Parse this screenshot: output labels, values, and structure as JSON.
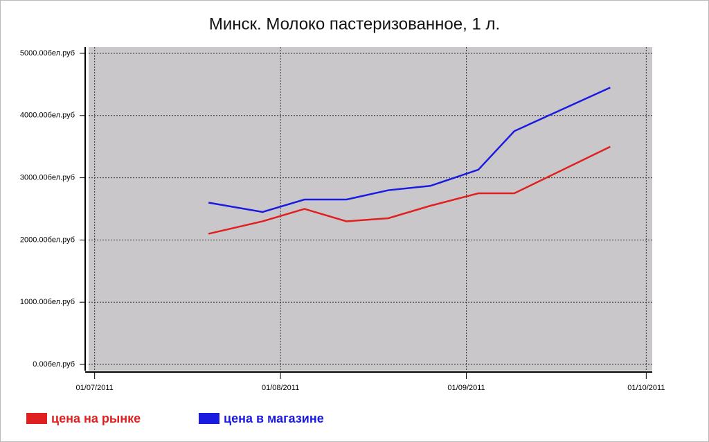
{
  "chart_data": {
    "type": "line",
    "title": "Минск. Молоко пастеризованное, 1 л.",
    "x": [
      "2011-07-20",
      "2011-07-29",
      "2011-08-05",
      "2011-08-12",
      "2011-08-19",
      "2011-08-26",
      "2011-09-03",
      "2011-09-09",
      "2011-09-25"
    ],
    "series": [
      {
        "name": "цена на рынке",
        "color": "#e02020",
        "values": [
          2100,
          2300,
          2500,
          2300,
          2350,
          2550,
          2750,
          2750,
          3500
        ]
      },
      {
        "name": "цена в магазине",
        "color": "#1a1ae0",
        "values": [
          2600,
          2450,
          2650,
          2650,
          2800,
          2870,
          3130,
          3750,
          4450
        ]
      }
    ],
    "xlim": [
      "2011-06-30",
      "2011-10-02"
    ],
    "xticks": [
      {
        "value": "2011-07-01",
        "label": "01/07/2011"
      },
      {
        "value": "2011-08-01",
        "label": "01/08/2011"
      },
      {
        "value": "2011-09-01",
        "label": "01/09/2011"
      },
      {
        "value": "2011-10-01",
        "label": "01/10/2011"
      }
    ],
    "ylim": [
      -100,
      5100
    ],
    "yticks": [
      {
        "value": 0,
        "label": "0.00бел.руб"
      },
      {
        "value": 1000,
        "label": "1000.00бел.руб"
      },
      {
        "value": 2000,
        "label": "2000.00бел.руб"
      },
      {
        "value": 3000,
        "label": "3000.00бел.руб"
      },
      {
        "value": 4000,
        "label": "4000.00бел.руб"
      },
      {
        "value": 5000,
        "label": "5000.00бел.руб"
      }
    ],
    "grid": true,
    "plot_background": "#c9c7c9",
    "legend_position": "bottom"
  }
}
